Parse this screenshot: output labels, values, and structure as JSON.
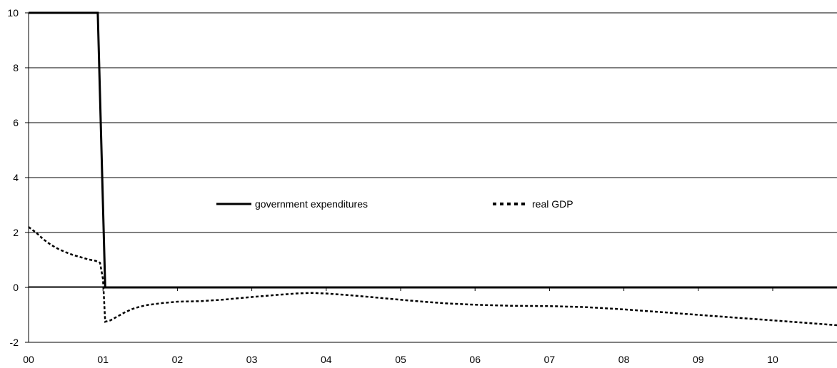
{
  "chart_data": {
    "type": "line",
    "ylim": [
      -2,
      10
    ],
    "yticks": [
      -2,
      0,
      2,
      4,
      6,
      8,
      10
    ],
    "xlim": [
      0,
      10.87
    ],
    "xtick_labels": [
      "00",
      "01",
      "02",
      "03",
      "04",
      "05",
      "06",
      "07",
      "08",
      "09",
      "10"
    ],
    "grid": true,
    "legend_position": "center",
    "series": [
      {
        "name": "government expenditures",
        "style": "solid",
        "color": "#000000",
        "x": [
          0,
          0.93,
          1.03,
          10.87
        ],
        "y": [
          10,
          10,
          0,
          0
        ]
      },
      {
        "name": "real GDP",
        "style": "dashed",
        "color": "#000000",
        "x": [
          0,
          0.1,
          0.2,
          0.3,
          0.4,
          0.5,
          0.6,
          0.7,
          0.8,
          0.9,
          0.96,
          1.0,
          1.03,
          1.1,
          1.2,
          1.3,
          1.4,
          1.5,
          1.6,
          1.8,
          2.0,
          2.3,
          2.6,
          3.0,
          3.3,
          3.6,
          3.8,
          4.0,
          4.3,
          4.6,
          5.0,
          5.3,
          5.6,
          6.0,
          6.5,
          7.0,
          7.5,
          8.0,
          8.5,
          9.0,
          9.5,
          10.0,
          10.5,
          10.87
        ],
        "y": [
          2.2,
          2.0,
          1.75,
          1.55,
          1.4,
          1.28,
          1.18,
          1.1,
          1.02,
          0.97,
          0.9,
          0.3,
          -1.25,
          -1.2,
          -1.05,
          -0.9,
          -0.78,
          -0.7,
          -0.64,
          -0.57,
          -0.52,
          -0.5,
          -0.45,
          -0.35,
          -0.28,
          -0.22,
          -0.2,
          -0.22,
          -0.28,
          -0.35,
          -0.45,
          -0.52,
          -0.58,
          -0.63,
          -0.67,
          -0.68,
          -0.72,
          -0.8,
          -0.9,
          -1.0,
          -1.1,
          -1.2,
          -1.3,
          -1.38
        ]
      }
    ]
  }
}
